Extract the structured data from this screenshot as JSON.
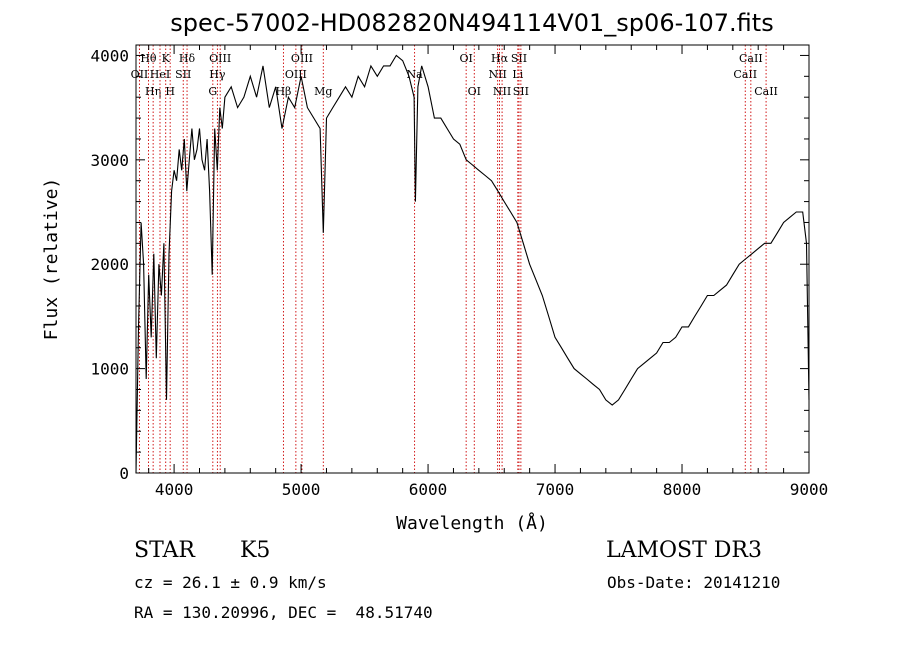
{
  "chart_data": {
    "type": "line",
    "title": "spec-57002-HD082820N494114V01_sp06-107.fits",
    "xlabel": "Wavelength (Å)",
    "ylabel": "Flux (relative)",
    "xlim": [
      3700,
      9000
    ],
    "ylim": [
      0,
      4100
    ],
    "xticks": [
      4000,
      5000,
      6000,
      7000,
      8000,
      9000
    ],
    "yticks": [
      0,
      1000,
      2000,
      3000,
      4000
    ],
    "grid": false,
    "line_color": "#000000",
    "marker_color": "#cc0000",
    "series": [
      {
        "x": [
          3700,
          3720,
          3740,
          3760,
          3780,
          3800,
          3820,
          3840,
          3860,
          3880,
          3900,
          3920,
          3940,
          3960,
          3980,
          4000,
          4020,
          4040,
          4060,
          4080,
          4100,
          4120,
          4140,
          4160,
          4180,
          4200,
          4220,
          4240,
          4260,
          4280,
          4300,
          4320,
          4340,
          4360,
          4380,
          4400,
          4450,
          4500,
          4550,
          4600,
          4650,
          4700,
          4750,
          4800,
          4850,
          4900,
          4950,
          5000,
          5050,
          5100,
          5150,
          5175,
          5200,
          5250,
          5300,
          5350,
          5400,
          5450,
          5500,
          5550,
          5600,
          5650,
          5700,
          5750,
          5800,
          5850,
          5890,
          5900,
          5920,
          5950,
          6000,
          6050,
          6100,
          6150,
          6200,
          6250,
          6300,
          6350,
          6400,
          6450,
          6500,
          6550,
          6600,
          6650,
          6700,
          6750,
          6800,
          6850,
          6900,
          6950,
          7000,
          7050,
          7100,
          7150,
          7200,
          7250,
          7300,
          7350,
          7400,
          7450,
          7500,
          7550,
          7600,
          7650,
          7700,
          7750,
          7800,
          7850,
          7900,
          7950,
          8000,
          8050,
          8100,
          8150,
          8200,
          8250,
          8300,
          8350,
          8400,
          8450,
          8500,
          8550,
          8600,
          8650,
          8700,
          8750,
          8800,
          8850,
          8900,
          8950,
          8980,
          9000
        ],
        "y": [
          0,
          1400,
          2400,
          2000,
          900,
          1900,
          1300,
          2100,
          1100,
          2000,
          1700,
          2200,
          700,
          2100,
          2700,
          2900,
          2800,
          3100,
          2900,
          3200,
          2700,
          3000,
          3300,
          3000,
          3100,
          3300,
          3000,
          2900,
          3200,
          2700,
          1900,
          3300,
          2900,
          3500,
          3300,
          3600,
          3700,
          3500,
          3600,
          3800,
          3600,
          3900,
          3500,
          3700,
          3300,
          3600,
          3500,
          3800,
          3500,
          3400,
          3300,
          2300,
          3400,
          3500,
          3600,
          3700,
          3600,
          3800,
          3700,
          3900,
          3800,
          3900,
          3900,
          4000,
          3950,
          3800,
          3600,
          2600,
          3700,
          3900,
          3700,
          3400,
          3400,
          3300,
          3200,
          3150,
          3000,
          2950,
          2900,
          2850,
          2800,
          2700,
          2600,
          2500,
          2400,
          2200,
          2000,
          1850,
          1700,
          1500,
          1300,
          1200,
          1100,
          1000,
          950,
          900,
          850,
          800,
          700,
          650,
          700,
          800,
          900,
          1000,
          1050,
          1100,
          1150,
          1250,
          1250,
          1300,
          1400,
          1400,
          1500,
          1600,
          1700,
          1700,
          1750,
          1800,
          1900,
          2000,
          2050,
          2100,
          2150,
          2200,
          2200,
          2300,
          2400,
          2450,
          2500,
          2500,
          2200,
          700
        ]
      }
    ],
    "lines": [
      {
        "x": 3727,
        "label": "OII",
        "row": 2
      },
      {
        "x": 3798,
        "label": "Hθ",
        "row": 1
      },
      {
        "x": 3835,
        "label": "Hη",
        "row": 3
      },
      {
        "x": 3889,
        "label": "HeI",
        "row": 2
      },
      {
        "x": 3934,
        "label": "K",
        "row": 1
      },
      {
        "x": 3969,
        "label": "H",
        "row": 3
      },
      {
        "x": 4072,
        "label": "SII",
        "row": 2
      },
      {
        "x": 4102,
        "label": "Hδ",
        "row": 1
      },
      {
        "x": 4305,
        "label": "G",
        "row": 3
      },
      {
        "x": 4341,
        "label": "Hγ",
        "row": 2
      },
      {
        "x": 4363,
        "label": "OIII",
        "row": 1
      },
      {
        "x": 4861,
        "label": "Hβ",
        "row": 3
      },
      {
        "x": 4959,
        "label": "OIII",
        "row": 2
      },
      {
        "x": 5007,
        "label": "OIII",
        "row": 1
      },
      {
        "x": 5175,
        "label": "Mg",
        "row": 3
      },
      {
        "x": 5894,
        "label": "Na",
        "row": 2
      },
      {
        "x": 6300,
        "label": "OI",
        "row": 1
      },
      {
        "x": 6364,
        "label": "OI",
        "row": 3
      },
      {
        "x": 6548,
        "label": "NII",
        "row": 2
      },
      {
        "x": 6563,
        "label": "Hα",
        "row": 1
      },
      {
        "x": 6583,
        "label": "NII",
        "row": 3
      },
      {
        "x": 6707,
        "label": "Li",
        "row": 2
      },
      {
        "x": 6716,
        "label": "SII",
        "row": 1
      },
      {
        "x": 6731,
        "label": "SII",
        "row": 3
      },
      {
        "x": 8498,
        "label": "CaII",
        "row": 2
      },
      {
        "x": 8542,
        "label": "CaII",
        "row": 1
      },
      {
        "x": 8662,
        "label": "CaII",
        "row": 3
      }
    ]
  },
  "info": {
    "class": "STAR",
    "subclass": "K5",
    "survey": "LAMOST DR3",
    "cz": "cz = 26.1 ± 0.9 km/s",
    "obs_date": "Obs-Date: 20141210",
    "coords": "RA = 130.20996, DEC =  48.51740"
  }
}
